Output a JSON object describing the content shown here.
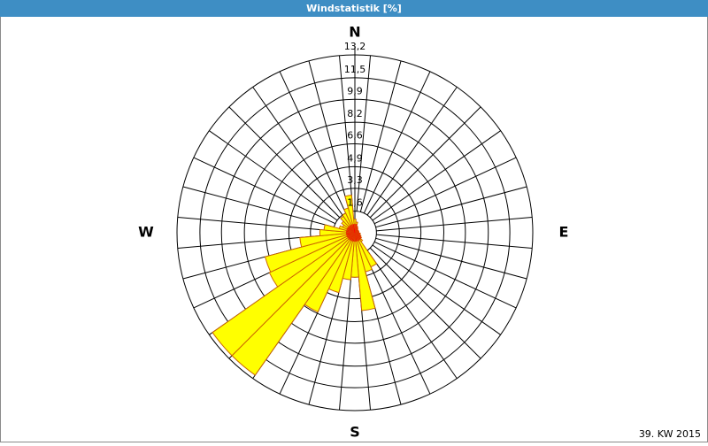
{
  "chart_data": {
    "type": "windrose",
    "title": "Windstatistik [%]",
    "directions": [
      "N",
      "E",
      "S",
      "W"
    ],
    "values": [
      1.0,
      0.8,
      0.5,
      0.4,
      0.3,
      0.3,
      0.3,
      0.3,
      0.3,
      0.3,
      0.4,
      0.4,
      0.5,
      0.6,
      0.8,
      2.8,
      3.0,
      5.8,
      3.3,
      3.5,
      4.6,
      6.5,
      12.9,
      12.9,
      7.0,
      6.9,
      4.1,
      2.6,
      2.3,
      1.2,
      1.0,
      1.2,
      1.5,
      1.6,
      1.9,
      2.8
    ],
    "color": "#ffff00",
    "edge_color": "#cc6600",
    "rlim": [
      0,
      13.2
    ],
    "rticks": [
      {
        "value": 1.6,
        "label": "1,6"
      },
      {
        "value": 3.3,
        "label": "3,3"
      },
      {
        "value": 4.9,
        "label": "4,9"
      },
      {
        "value": 6.6,
        "label": "6,6"
      },
      {
        "value": 8.2,
        "label": "8,2"
      },
      {
        "value": 9.9,
        "label": "9,9"
      },
      {
        "value": 11.5,
        "label": "11,5"
      },
      {
        "value": 13.2,
        "label": "13,2"
      }
    ],
    "footnote": "39. KW 2015"
  }
}
